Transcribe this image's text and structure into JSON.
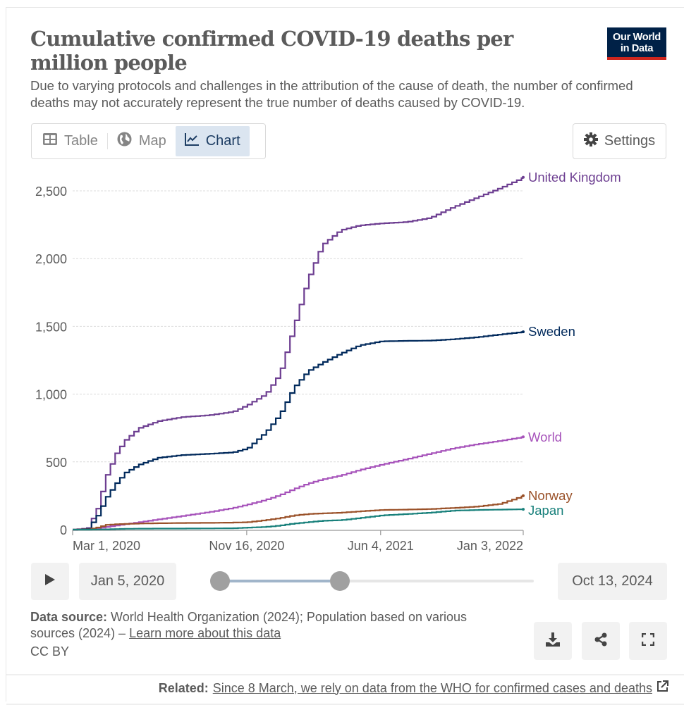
{
  "header": {
    "title": "Cumulative confirmed COVID-19 deaths per million people",
    "subtitle": "Due to varying protocols and challenges in the attribution of the cause of death, the number of confirmed deaths may not accurately represent the true number of deaths caused by COVID-19.",
    "logo_line1": "Our World",
    "logo_line2": "in Data",
    "logo_colors": {
      "background": "#002147",
      "underline": "#ce261e"
    }
  },
  "tabs": [
    {
      "label": "Table",
      "icon": "table-icon",
      "active": false
    },
    {
      "label": "Map",
      "icon": "globe-icon",
      "active": false
    },
    {
      "label": "Chart",
      "icon": "line-chart-icon",
      "active": true
    }
  ],
  "settings": {
    "label": "Settings",
    "icon": "gear-icon"
  },
  "timeline": {
    "play_icon": "play-icon",
    "start_label": "Jan 5, 2020",
    "end_label": "Oct 13, 2024",
    "range_start_fraction": 0.0,
    "range_end_fraction": 0.4
  },
  "footer": {
    "source_prefix": "Data source:",
    "source_text": " World Health Organization (2024); Population based on various sources (2024) – ",
    "source_link": "Learn more about this data",
    "license": "CC BY",
    "actions": [
      {
        "name": "download",
        "icon": "download-icon"
      },
      {
        "name": "share",
        "icon": "share-icon"
      },
      {
        "name": "fullscreen",
        "icon": "fullscreen-icon"
      }
    ],
    "related_prefix": "Related:",
    "related_link": "Since 8 March, we rely on data from the WHO for confirmed cases and deaths",
    "related_icon": "external-link-icon"
  },
  "chart_data": {
    "type": "line",
    "title": "Cumulative confirmed COVID-19 deaths per million people",
    "xlabel": "",
    "ylabel": "",
    "ylim": [
      0,
      2600
    ],
    "yticks": [
      0,
      500,
      1000,
      1500,
      2000,
      2500
    ],
    "ytick_labels": [
      "0",
      "500",
      "1,000",
      "1,500",
      "2,000",
      "2,500"
    ],
    "xlim": [
      "2020-03-01",
      "2022-01-03"
    ],
    "xticks": [
      "2020-03-01",
      "2020-11-16",
      "2021-06-04",
      "2022-01-03"
    ],
    "xtick_labels": [
      "Mar 1, 2020",
      "Nov 16, 2020",
      "Jun 4, 2021",
      "Jan 3, 2022"
    ],
    "grid": "horizontal dashed",
    "legend": "line-end labels (right)",
    "x": [
      "2020-03-01",
      "2020-03-22",
      "2020-04-05",
      "2020-04-19",
      "2020-05-03",
      "2020-05-17",
      "2020-06-07",
      "2020-07-05",
      "2020-08-09",
      "2020-09-20",
      "2020-10-25",
      "2020-11-16",
      "2020-12-13",
      "2021-01-03",
      "2021-01-24",
      "2021-02-14",
      "2021-03-07",
      "2021-04-04",
      "2021-05-02",
      "2021-06-04",
      "2021-07-11",
      "2021-08-15",
      "2021-09-19",
      "2021-10-24",
      "2021-11-28",
      "2022-01-03"
    ],
    "series": [
      {
        "name": "United Kingdom",
        "color": "#6d3e91",
        "values": [
          0,
          10,
          150,
          400,
          560,
          660,
          750,
          800,
          830,
          845,
          870,
          920,
          1000,
          1150,
          1500,
          1850,
          2100,
          2210,
          2245,
          2260,
          2270,
          2300,
          2380,
          2450,
          2520,
          2600
        ]
      },
      {
        "name": "Sweden",
        "color": "#00295b",
        "values": [
          0,
          5,
          100,
          240,
          340,
          420,
          480,
          530,
          550,
          560,
          570,
          600,
          720,
          850,
          1050,
          1170,
          1230,
          1300,
          1360,
          1390,
          1393,
          1395,
          1405,
          1420,
          1440,
          1460
        ]
      },
      {
        "name": "World",
        "color": "#a652ba",
        "values": [
          0,
          1,
          10,
          20,
          30,
          40,
          55,
          75,
          100,
          130,
          160,
          185,
          220,
          255,
          300,
          340,
          370,
          400,
          440,
          480,
          520,
          560,
          600,
          630,
          655,
          685
        ]
      },
      {
        "name": "Norway",
        "color": "#9a5129",
        "values": [
          0,
          2,
          15,
          35,
          40,
          42,
          45,
          47,
          49,
          50,
          52,
          55,
          70,
          85,
          105,
          115,
          120,
          125,
          135,
          145,
          148,
          152,
          160,
          170,
          190,
          250
        ]
      },
      {
        "name": "Japan",
        "color": "#18807b",
        "values": [
          0,
          0,
          1,
          2,
          4,
          6,
          7,
          8,
          8,
          9,
          10,
          15,
          20,
          30,
          45,
          55,
          65,
          70,
          85,
          105,
          115,
          125,
          140,
          145,
          148,
          150
        ]
      }
    ]
  }
}
